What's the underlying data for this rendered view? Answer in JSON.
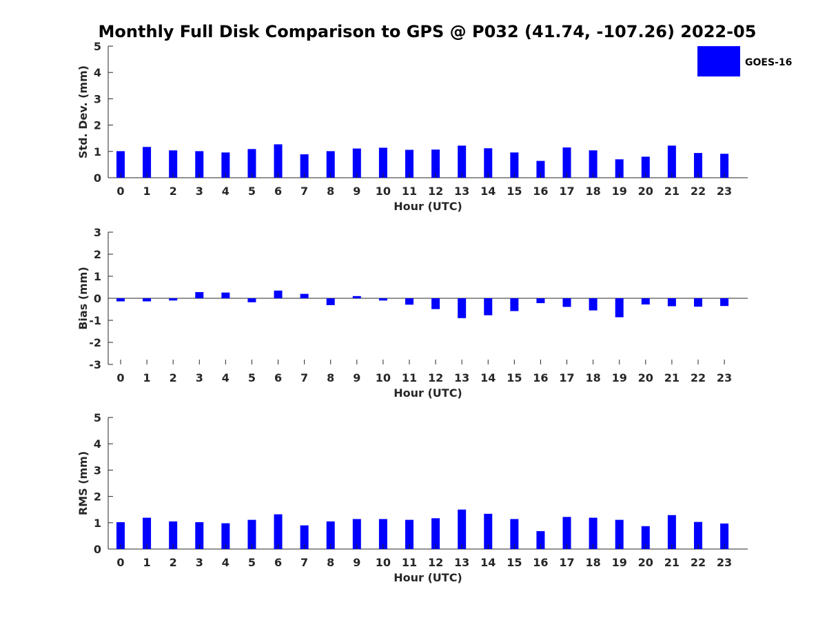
{
  "title": "Monthly Full Disk Comparison to GPS @ P032 (41.74, -107.26) 2022-05",
  "legend": {
    "label": "GOES-16",
    "color": "#0000ff",
    "placement": "top-right"
  },
  "chart_data": [
    {
      "type": "bar",
      "xlabel": "Hour (UTC)",
      "ylabel": "Std. Dev. (mm)",
      "ylim": [
        0,
        5
      ],
      "yticks": [
        "0",
        "1",
        "2",
        "3",
        "4",
        "5"
      ],
      "categories": [
        "0",
        "1",
        "2",
        "3",
        "4",
        "5",
        "6",
        "7",
        "8",
        "9",
        "10",
        "11",
        "12",
        "13",
        "14",
        "15",
        "16",
        "17",
        "18",
        "19",
        "20",
        "21",
        "22",
        "23"
      ],
      "series": [
        {
          "name": "GOES-16",
          "values": [
            1.01,
            1.17,
            1.04,
            1.01,
            0.96,
            1.09,
            1.27,
            0.89,
            1.01,
            1.11,
            1.14,
            1.06,
            1.07,
            1.22,
            1.12,
            0.96,
            0.64,
            1.15,
            1.04,
            0.7,
            0.8,
            1.22,
            0.94,
            0.91
          ]
        }
      ],
      "grid": false
    },
    {
      "type": "bar",
      "xlabel": "Hour (UTC)",
      "ylabel": "Bias (mm)",
      "ylim": [
        -3,
        3
      ],
      "yticks": [
        "-3",
        "-2",
        "-1",
        "0",
        "1",
        "2",
        "3"
      ],
      "categories": [
        "0",
        "1",
        "2",
        "3",
        "4",
        "5",
        "6",
        "7",
        "8",
        "9",
        "10",
        "11",
        "12",
        "13",
        "14",
        "15",
        "16",
        "17",
        "18",
        "19",
        "20",
        "21",
        "22",
        "23"
      ],
      "series": [
        {
          "name": "GOES-16",
          "values": [
            -0.14,
            -0.14,
            -0.1,
            0.28,
            0.26,
            -0.18,
            0.35,
            0.2,
            -0.31,
            0.1,
            -0.1,
            -0.29,
            -0.49,
            -0.9,
            -0.77,
            -0.58,
            -0.22,
            -0.39,
            -0.55,
            -0.86,
            -0.28,
            -0.36,
            -0.38,
            -0.35
          ]
        }
      ],
      "grid": false
    },
    {
      "type": "bar",
      "xlabel": "Hour (UTC)",
      "ylabel": "RMS (mm)",
      "ylim": [
        0,
        5
      ],
      "yticks": [
        "0",
        "1",
        "2",
        "3",
        "4",
        "5"
      ],
      "categories": [
        "0",
        "1",
        "2",
        "3",
        "4",
        "5",
        "6",
        "7",
        "8",
        "9",
        "10",
        "11",
        "12",
        "13",
        "14",
        "15",
        "16",
        "17",
        "18",
        "19",
        "20",
        "21",
        "22",
        "23"
      ],
      "series": [
        {
          "name": "GOES-16",
          "values": [
            1.02,
            1.19,
            1.05,
            1.02,
            0.98,
            1.11,
            1.32,
            0.9,
            1.05,
            1.14,
            1.14,
            1.11,
            1.17,
            1.5,
            1.34,
            1.14,
            0.68,
            1.22,
            1.19,
            1.11,
            0.87,
            1.29,
            1.03,
            0.97
          ]
        }
      ],
      "grid": false
    }
  ]
}
